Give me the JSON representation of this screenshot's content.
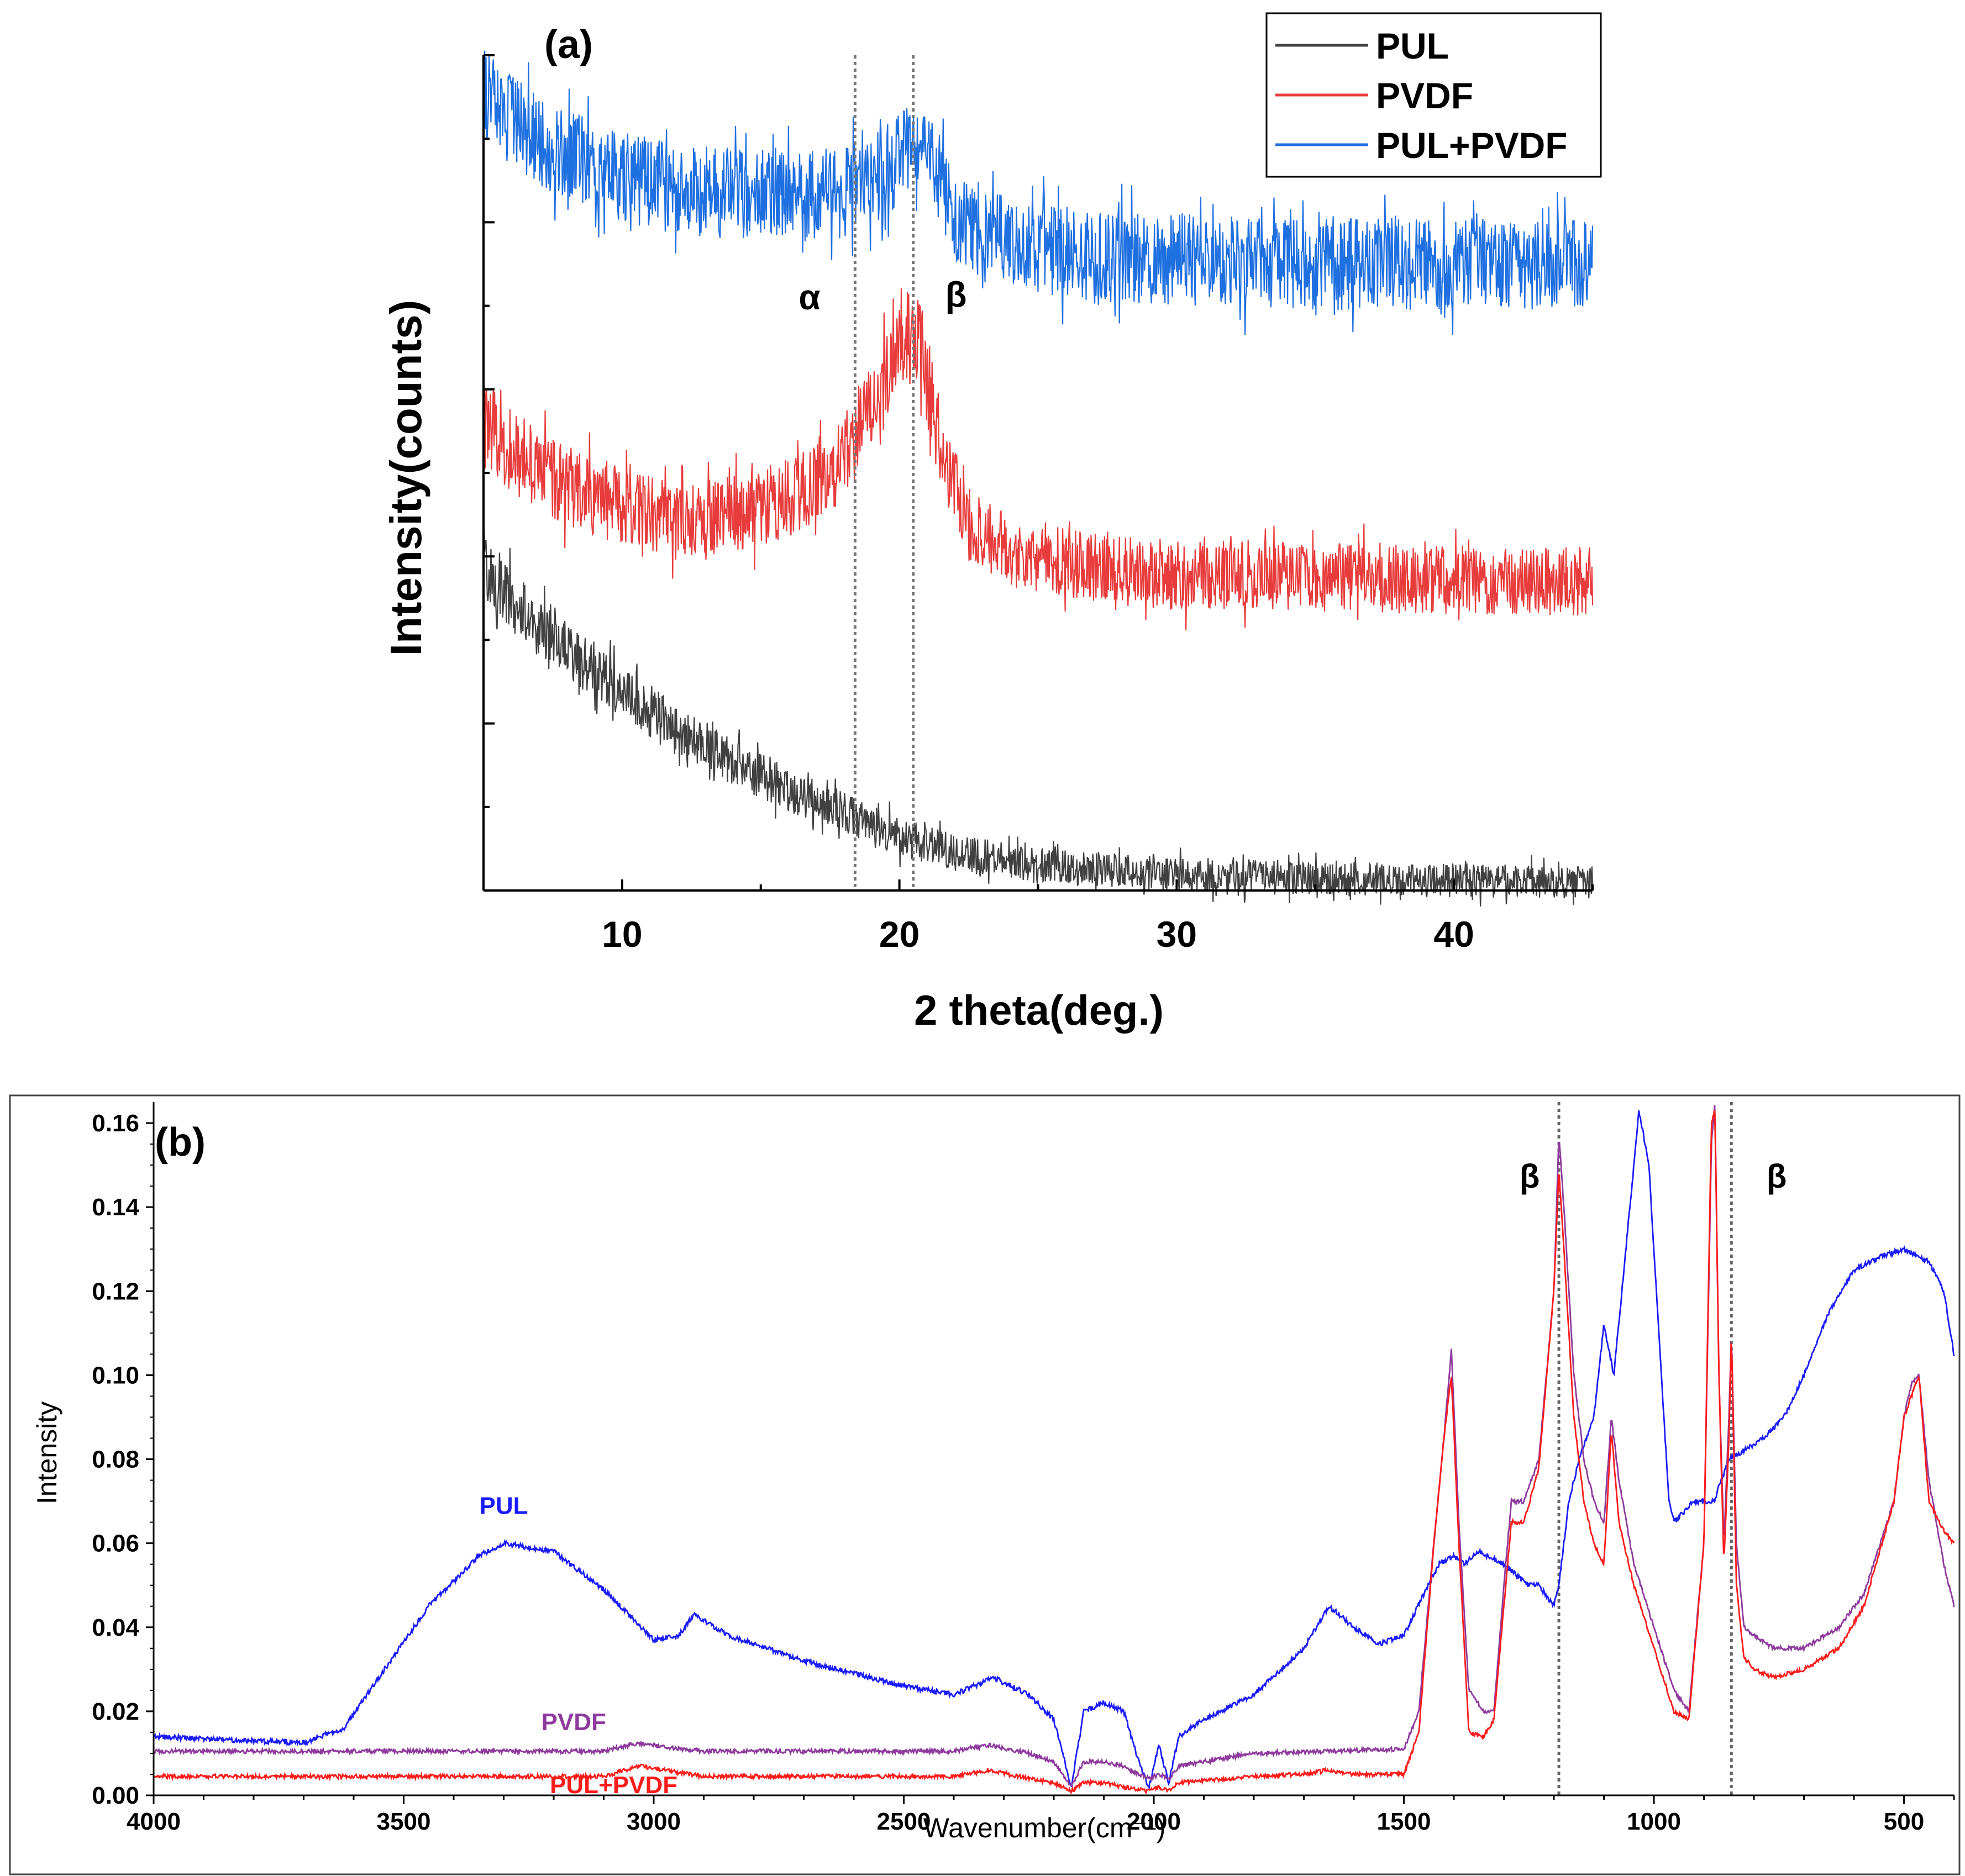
{
  "chart_data": [
    {
      "panel": "(a)",
      "type": "line",
      "title": "",
      "xlabel": "2 theta(deg.)",
      "ylabel": "Intensity(counts)",
      "xlim": [
        5,
        45
      ],
      "ylim": [
        0,
        10
      ],
      "x_ticks": [
        10,
        20,
        30,
        40
      ],
      "x_tick_labels": [
        "10",
        "20",
        "30",
        "40"
      ],
      "y_tick_labels_shown": false,
      "legend_position": "top-right",
      "legend": [
        "PUL",
        "PVDF",
        "PUL+PVDF"
      ],
      "annotations": [
        {
          "text": "α",
          "x": 18.4,
          "vline": true
        },
        {
          "text": "β",
          "x": 20.5,
          "vline": true
        }
      ],
      "series": [
        {
          "name": "PUL",
          "color": "#404040",
          "noise": 0.55,
          "x": [
            5,
            6,
            8,
            10,
            12,
            14,
            16,
            18,
            20,
            22,
            25,
            30,
            35,
            40,
            45
          ],
          "values": [
            3.9,
            3.45,
            2.9,
            2.4,
            1.9,
            1.55,
            1.2,
            0.95,
            0.65,
            0.45,
            0.3,
            0.2,
            0.15,
            0.12,
            0.1
          ]
        },
        {
          "name": "PVDF",
          "color": "#e83c3c",
          "noise": 0.55,
          "x": [
            5,
            6,
            8,
            10,
            12,
            14,
            16,
            17.5,
            18.4,
            19.5,
            20.3,
            20.8,
            21.5,
            22.5,
            24,
            27,
            30,
            35,
            40,
            45
          ],
          "values": [
            5.6,
            5.25,
            4.85,
            4.6,
            4.45,
            4.5,
            4.7,
            5.05,
            5.4,
            6.1,
            6.65,
            6.45,
            5.3,
            4.4,
            4.05,
            3.85,
            3.78,
            3.75,
            3.72,
            3.7
          ]
        },
        {
          "name": "PUL+PVDF",
          "color": "#1e6fe0",
          "noise": 0.55,
          "x": [
            5,
            6,
            8,
            10,
            12,
            14,
            16,
            18,
            19.5,
            20.5,
            21.2,
            22,
            24,
            27,
            30,
            35,
            40,
            45
          ],
          "values": [
            9.55,
            9.2,
            8.8,
            8.55,
            8.4,
            8.35,
            8.3,
            8.35,
            8.6,
            8.9,
            8.7,
            8.1,
            7.75,
            7.6,
            7.55,
            7.5,
            7.5,
            7.5
          ]
        }
      ]
    },
    {
      "panel": "(b)",
      "type": "line",
      "title": "",
      "xlabel": "Wavenumber(cm⁻¹)",
      "ylabel": "Intensity",
      "xlim": [
        4000,
        400
      ],
      "ylim": [
        0,
        0.165
      ],
      "x_ticks": [
        4000,
        3500,
        3000,
        2500,
        2000,
        1500,
        1000,
        500
      ],
      "x_tick_labels": [
        "4000",
        "3500",
        "3000",
        "2500",
        "2000",
        "1500",
        "1000",
        "500"
      ],
      "y_ticks": [
        0.0,
        0.02,
        0.04,
        0.06,
        0.08,
        0.1,
        0.12,
        0.14,
        0.16
      ],
      "y_tick_labels": [
        "0.00",
        "0.02",
        "0.04",
        "0.06",
        "0.08",
        "0.10",
        "0.12",
        "0.14",
        "0.16"
      ],
      "annotations": [
        {
          "text": "β",
          "x": 1190,
          "vline": true
        },
        {
          "text": "β",
          "x": 845,
          "vline": true
        }
      ],
      "series_labels": [
        {
          "name": "PUL",
          "label": "PUL",
          "color": "#1a1aff",
          "at_x": 3300,
          "at_y": 0.067
        },
        {
          "name": "PVDF",
          "label": "PVDF",
          "color": "#8e3a9d",
          "at_x": 3160,
          "at_y": 0.0155
        },
        {
          "name": "PUL+PVDF",
          "label": "PUL+PVDF",
          "color": "#ff1a1a",
          "at_x": 3080,
          "at_y": 0.0005
        }
      ],
      "series": [
        {
          "name": "PUL",
          "color": "#1a1aff",
          "noise": 0.0006,
          "x": [
            4000,
            3700,
            3620,
            3550,
            3450,
            3350,
            3300,
            3200,
            3100,
            3000,
            2950,
            2920,
            2850,
            2700,
            2500,
            2400,
            2320,
            2250,
            2200,
            2165,
            2140,
            2100,
            2060,
            2030,
            2010,
            1990,
            1970,
            1950,
            1900,
            1800,
            1700,
            1650,
            1600,
            1550,
            1500,
            1460,
            1430,
            1400,
            1380,
            1350,
            1300,
            1250,
            1230,
            1200,
            1190,
            1170,
            1150,
            1120,
            1100,
            1080,
            1060,
            1040,
            1030,
            1010,
            990,
            970,
            960,
            920,
            880,
            850,
            820,
            780,
            740,
            700,
            650,
            600,
            550,
            500,
            470,
            450,
            420,
            400
          ],
          "values": [
            0.014,
            0.0125,
            0.016,
            0.028,
            0.045,
            0.057,
            0.06,
            0.058,
            0.049,
            0.037,
            0.038,
            0.043,
            0.038,
            0.032,
            0.026,
            0.024,
            0.028,
            0.024,
            0.018,
            0.002,
            0.02,
            0.022,
            0.02,
            0.008,
            0.002,
            0.012,
            0.003,
            0.014,
            0.018,
            0.024,
            0.035,
            0.045,
            0.04,
            0.036,
            0.038,
            0.048,
            0.055,
            0.057,
            0.055,
            0.058,
            0.055,
            0.05,
            0.05,
            0.045,
            0.05,
            0.07,
            0.08,
            0.09,
            0.112,
            0.1,
            0.125,
            0.15,
            0.163,
            0.15,
            0.11,
            0.07,
            0.065,
            0.07,
            0.07,
            0.08,
            0.082,
            0.085,
            0.09,
            0.1,
            0.115,
            0.125,
            0.128,
            0.13,
            0.128,
            0.127,
            0.12,
            0.105
          ]
        },
        {
          "name": "PVDF",
          "color": "#8e3a9d",
          "noise": 0.0005,
          "x": [
            4000,
            3500,
            3100,
            3030,
            2980,
            2900,
            2600,
            2400,
            2330,
            2250,
            2200,
            2165,
            2140,
            2100,
            2060,
            2030,
            2010,
            1990,
            1970,
            1950,
            1800,
            1500,
            1470,
            1440,
            1420,
            1405,
            1390,
            1370,
            1340,
            1320,
            1300,
            1285,
            1260,
            1230,
            1200,
            1190,
            1180,
            1160,
            1140,
            1120,
            1100,
            1085,
            1070,
            1040,
            1000,
            960,
            930,
            900,
            885,
            878,
            870,
            860,
            850,
            845,
            835,
            820,
            800,
            760,
            700,
            630,
            580,
            520,
            500,
            485,
            470,
            450,
            420,
            400
          ],
          "values": [
            0.0105,
            0.0105,
            0.0105,
            0.0125,
            0.0115,
            0.0105,
            0.0105,
            0.0105,
            0.012,
            0.01,
            0.008,
            0.002,
            0.008,
            0.008,
            0.007,
            0.005,
            0.004,
            0.005,
            0.004,
            0.007,
            0.01,
            0.011,
            0.02,
            0.06,
            0.085,
            0.106,
            0.065,
            0.025,
            0.02,
            0.02,
            0.05,
            0.07,
            0.07,
            0.08,
            0.12,
            0.157,
            0.14,
            0.1,
            0.08,
            0.07,
            0.065,
            0.09,
            0.075,
            0.055,
            0.04,
            0.025,
            0.02,
            0.06,
            0.155,
            0.165,
            0.1,
            0.06,
            0.09,
            0.11,
            0.06,
            0.04,
            0.038,
            0.035,
            0.035,
            0.04,
            0.048,
            0.07,
            0.09,
            0.098,
            0.1,
            0.075,
            0.055,
            0.045
          ]
        },
        {
          "name": "PUL+PVDF",
          "color": "#ff1a1a",
          "noise": 0.0005,
          "x": [
            4000,
            3500,
            3100,
            3030,
            2980,
            2900,
            2600,
            2400,
            2330,
            2250,
            2200,
            2165,
            2140,
            2100,
            2060,
            2030,
            2010,
            1990,
            1970,
            1950,
            1800,
            1700,
            1650,
            1600,
            1500,
            1470,
            1440,
            1420,
            1405,
            1390,
            1370,
            1340,
            1320,
            1300,
            1285,
            1260,
            1230,
            1200,
            1190,
            1180,
            1160,
            1140,
            1120,
            1100,
            1085,
            1070,
            1040,
            1000,
            960,
            930,
            900,
            885,
            878,
            870,
            860,
            850,
            845,
            835,
            820,
            800,
            760,
            700,
            630,
            580,
            520,
            500,
            485,
            470,
            450,
            420,
            400
          ],
          "values": [
            0.0045,
            0.0045,
            0.0045,
            0.007,
            0.006,
            0.0045,
            0.0045,
            0.0045,
            0.006,
            0.004,
            0.003,
            0.001,
            0.003,
            0.003,
            0.002,
            0.0015,
            0.001,
            0.002,
            0.001,
            0.003,
            0.0045,
            0.005,
            0.006,
            0.005,
            0.005,
            0.015,
            0.06,
            0.085,
            0.1,
            0.06,
            0.015,
            0.014,
            0.018,
            0.045,
            0.065,
            0.065,
            0.078,
            0.12,
            0.149,
            0.13,
            0.09,
            0.07,
            0.06,
            0.055,
            0.087,
            0.065,
            0.05,
            0.035,
            0.02,
            0.018,
            0.06,
            0.16,
            0.163,
            0.1,
            0.055,
            0.085,
            0.11,
            0.05,
            0.033,
            0.03,
            0.028,
            0.03,
            0.035,
            0.045,
            0.07,
            0.09,
            0.095,
            0.1,
            0.07,
            0.063,
            0.06
          ]
        }
      ]
    }
  ]
}
